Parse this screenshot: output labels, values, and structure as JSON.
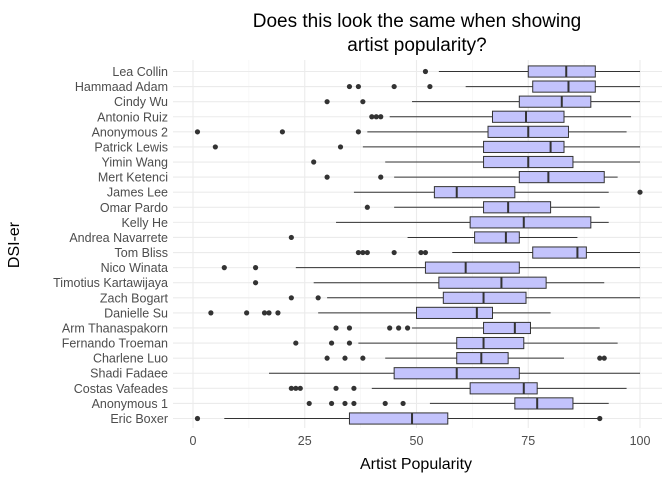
{
  "chart_data": {
    "type": "boxplot",
    "orientation": "horizontal",
    "title_lines": [
      "Does this look the same when showing",
      "artist popularity?"
    ],
    "xlabel": "Artist Popularity",
    "ylabel": "DSI-er",
    "xlim": [
      0,
      100
    ],
    "x_ticks": [
      0,
      25,
      50,
      75,
      100
    ],
    "grid": true,
    "box_fill": "#c3c3fc",
    "box_stroke": "#333333",
    "series": [
      {
        "name": "Lea Collin",
        "min": 55,
        "q1": 75,
        "median": 83.5,
        "q3": 90,
        "max": 100,
        "outliers": [
          52
        ]
      },
      {
        "name": "Hammaad Adam",
        "min": 61,
        "q1": 76,
        "median": 84,
        "q3": 90,
        "max": 100,
        "outliers": [
          35,
          37,
          45,
          53
        ]
      },
      {
        "name": "Cindy Wu",
        "min": 49,
        "q1": 73,
        "median": 82.5,
        "q3": 89,
        "max": 100,
        "outliers": [
          30,
          38
        ]
      },
      {
        "name": "Antonio Ruiz",
        "min": 44,
        "q1": 67,
        "median": 74.5,
        "q3": 83,
        "max": 98,
        "outliers": [
          40,
          41,
          42
        ]
      },
      {
        "name": "Anonymous 2",
        "min": 39,
        "q1": 66,
        "median": 75,
        "q3": 84,
        "max": 97,
        "outliers": [
          1,
          20,
          37
        ]
      },
      {
        "name": "Patrick Lewis",
        "min": 38,
        "q1": 65,
        "median": 80,
        "q3": 83,
        "max": 100,
        "outliers": [
          5,
          33
        ]
      },
      {
        "name": "Yimin Wang",
        "min": 43,
        "q1": 65,
        "median": 75,
        "q3": 85,
        "max": 100,
        "outliers": [
          27
        ]
      },
      {
        "name": "Mert Ketenci",
        "min": 45,
        "q1": 73,
        "median": 79.5,
        "q3": 92,
        "max": 95,
        "outliers": [
          30,
          42
        ]
      },
      {
        "name": "James Lee",
        "min": 36,
        "q1": 54,
        "median": 59,
        "q3": 72,
        "max": 93,
        "outliers": [
          100
        ]
      },
      {
        "name": "Omar Pardo",
        "min": 45,
        "q1": 65,
        "median": 70.5,
        "q3": 80,
        "max": 91,
        "outliers": [
          39
        ]
      },
      {
        "name": "Kelly He",
        "min": 32,
        "q1": 62,
        "median": 74,
        "q3": 89,
        "max": 93,
        "outliers": []
      },
      {
        "name": "Andrea Navarrete",
        "min": 48,
        "q1": 63,
        "median": 70,
        "q3": 73,
        "max": 86,
        "outliers": [
          22
        ]
      },
      {
        "name": "Tom Bliss",
        "min": 58,
        "q1": 76,
        "median": 86,
        "q3": 88,
        "max": 100,
        "outliers": [
          37,
          38,
          39,
          45,
          51,
          52
        ]
      },
      {
        "name": "Nico Winata",
        "min": 23,
        "q1": 52,
        "median": 61,
        "q3": 73,
        "max": 100,
        "outliers": [
          7,
          14
        ]
      },
      {
        "name": "Timotius Kartawijaya",
        "min": 27,
        "q1": 55,
        "median": 69,
        "q3": 79,
        "max": 92,
        "outliers": [
          14
        ]
      },
      {
        "name": "Zach Bogart",
        "min": 30,
        "q1": 56,
        "median": 65,
        "q3": 74.5,
        "max": 100,
        "outliers": [
          22,
          28
        ]
      },
      {
        "name": "Danielle Su",
        "min": 28,
        "q1": 50,
        "median": 63.5,
        "q3": 67,
        "max": 80,
        "outliers": [
          4,
          12,
          16,
          17,
          19
        ]
      },
      {
        "name": "Arm Thanaspakorn",
        "min": 49,
        "q1": 65,
        "median": 72,
        "q3": 75.5,
        "max": 91,
        "outliers": [
          32,
          35,
          44,
          46,
          48
        ]
      },
      {
        "name": "Fernando Troeman",
        "min": 37,
        "q1": 59,
        "median": 65,
        "q3": 74,
        "max": 95,
        "outliers": [
          23,
          31,
          35
        ]
      },
      {
        "name": "Charlene Luo",
        "min": 43,
        "q1": 59,
        "median": 64.5,
        "q3": 70.5,
        "max": 83,
        "outliers": [
          30,
          34,
          38,
          91,
          92
        ]
      },
      {
        "name": "Shadi Fadaee",
        "min": 17,
        "q1": 45,
        "median": 59,
        "q3": 73,
        "max": 100,
        "outliers": []
      },
      {
        "name": "Costas Vafeades",
        "min": 40,
        "q1": 62,
        "median": 74,
        "q3": 77,
        "max": 97,
        "outliers": [
          22,
          23,
          24,
          32,
          36
        ]
      },
      {
        "name": "Anonymous 1",
        "min": 53,
        "q1": 72,
        "median": 77,
        "q3": 85,
        "max": 93,
        "outliers": [
          26,
          31,
          34,
          36,
          43,
          47
        ]
      },
      {
        "name": "Eric Boxer",
        "min": 7,
        "q1": 35,
        "median": 49,
        "q3": 57,
        "max": 91,
        "outliers": [
          1,
          91
        ]
      }
    ]
  }
}
